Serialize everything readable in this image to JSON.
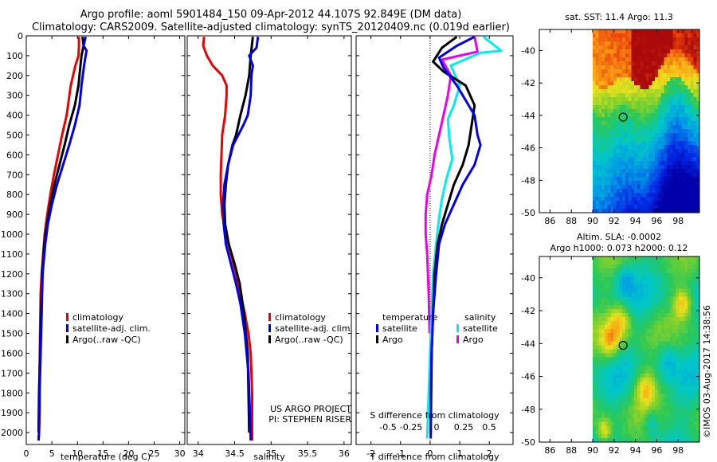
{
  "header": {
    "line1": "Argo profile: aoml 5901484_150 09-Apr-2012 44.107S 92.849E (DM data)",
    "line2": "Climatology: CARS2009. Satellite-adjusted climatology: synTS_20120409.nc (0.019d earlier)"
  },
  "colors": {
    "climatology": "#ee0000",
    "satellite": "#0000ee",
    "argo": "#000000",
    "sat_salinity": "#00eeee",
    "argo_salinity": "#ee00ee"
  },
  "depth_ticks": [
    0,
    100,
    200,
    300,
    400,
    500,
    600,
    700,
    800,
    900,
    1000,
    1100,
    1200,
    1300,
    1400,
    1500,
    1600,
    1700,
    1800,
    1900,
    2000
  ],
  "chart_data": [
    {
      "type": "line",
      "id": "temperature",
      "xlabel": "temperature (deg C)",
      "xlim": [
        0,
        31
      ],
      "ylim": [
        0,
        2060
      ],
      "xticks": [
        0,
        5,
        10,
        15,
        20,
        25,
        30
      ],
      "legend": {
        "location": "lower-middle",
        "entries": [
          "climatology",
          "satellite-adj. clim.",
          "Argo(..raw -QC)"
        ]
      },
      "series": [
        {
          "name": "climatology",
          "color": "#ee0000",
          "x": [
            10.3,
            10.3,
            10.2,
            9.6,
            8.7,
            7.9,
            7.0,
            6.2,
            5.4,
            4.7,
            4.1,
            3.6,
            3.3,
            3.0,
            2.8,
            2.7,
            2.6,
            2.6,
            2.5,
            2.4
          ],
          "y": [
            5,
            50,
            100,
            150,
            250,
            400,
            500,
            600,
            700,
            800,
            900,
            1000,
            1100,
            1200,
            1300,
            1500,
            1700,
            1900,
            2000,
            2040
          ]
        },
        {
          "name": "satellite-adj. clim.",
          "color": "#0000ee",
          "x": [
            11.6,
            11.2,
            11.8,
            11.6,
            11.3,
            10.8,
            10.4,
            9.5,
            8.4,
            7.2,
            6.0,
            5.0,
            4.2,
            3.7,
            3.2,
            3.0,
            2.8,
            2.6,
            2.5,
            2.4
          ],
          "y": [
            5,
            50,
            75,
            100,
            150,
            250,
            350,
            450,
            550,
            650,
            750,
            850,
            950,
            1050,
            1200,
            1400,
            1600,
            1800,
            2000,
            2040
          ]
        },
        {
          "name": "Argo(..raw -QC)",
          "color": "#000000",
          "x": [
            11.0,
            11.2,
            10.8,
            10.6,
            10.2,
            9.5,
            8.4,
            7.5,
            6.5,
            5.5,
            4.7,
            4.0,
            3.5,
            3.1,
            2.9,
            2.7,
            2.5,
            2.4
          ],
          "y": [
            5,
            50,
            100,
            150,
            250,
            350,
            450,
            550,
            650,
            750,
            850,
            950,
            1050,
            1200,
            1400,
            1600,
            1800,
            2000
          ]
        }
      ]
    },
    {
      "type": "line",
      "id": "salinity",
      "xlabel": "salinity",
      "xlim": [
        33.85,
        36.1
      ],
      "ylim": [
        0,
        2060
      ],
      "xticks": [
        34,
        34.5,
        35,
        35.5,
        36
      ],
      "xtick_labels": [
        "34",
        "34.5",
        "35",
        "35.5",
        "36"
      ],
      "legend": {
        "location": "lower-middle",
        "entries": [
          "climatology",
          "satellite-adj. clim.",
          "Argo(..raw -QC)"
        ]
      },
      "annotations": [
        "US ARGO PROJECT",
        "PI: STEPHEN RISER"
      ],
      "series": [
        {
          "name": "climatology",
          "color": "#ee0000",
          "x": [
            34.08,
            34.07,
            34.12,
            34.2,
            34.33,
            34.39,
            34.39,
            34.37,
            34.33,
            34.32,
            34.31,
            34.31,
            34.33,
            34.38,
            34.45,
            34.52,
            34.58,
            34.64,
            34.69,
            34.72,
            34.74,
            34.74
          ],
          "y": [
            5,
            50,
            100,
            150,
            200,
            250,
            300,
            400,
            500,
            600,
            700,
            800,
            900,
            1000,
            1100,
            1200,
            1300,
            1400,
            1500,
            1600,
            1800,
            2040
          ]
        },
        {
          "name": "satellite-adj. clim.",
          "color": "#0000ee",
          "x": [
            34.82,
            34.8,
            34.7,
            34.75,
            34.73,
            34.72,
            34.68,
            34.62,
            34.55,
            34.48,
            34.41,
            34.36,
            34.34,
            34.35,
            34.38,
            34.45,
            34.52,
            34.58,
            34.64,
            34.69,
            34.71,
            34.72
          ],
          "y": [
            5,
            60,
            100,
            150,
            200,
            300,
            400,
            450,
            500,
            550,
            650,
            750,
            850,
            950,
            1050,
            1150,
            1250,
            1350,
            1500,
            1700,
            1900,
            2040
          ]
        },
        {
          "name": "Argo(..raw -QC)",
          "color": "#000000",
          "x": [
            34.75,
            34.72,
            34.7,
            34.65,
            34.58,
            34.52,
            34.47,
            34.41,
            34.38,
            34.36,
            34.37,
            34.42,
            34.5,
            34.57,
            34.63,
            34.68,
            34.7
          ],
          "y": [
            5,
            100,
            200,
            300,
            400,
            500,
            550,
            650,
            750,
            850,
            950,
            1050,
            1150,
            1250,
            1400,
            1600,
            2000
          ]
        }
      ]
    },
    {
      "type": "line",
      "id": "differences",
      "xlabel": "T difference from climatology",
      "xlim": [
        -2.5,
        2.8
      ],
      "ylim": [
        0,
        2060
      ],
      "xticks": [
        -2,
        -1,
        0,
        1,
        2
      ],
      "secondary_xlabel": "S difference from climatology",
      "secondary_xtick_labels": [
        "-0.5",
        "-0.25",
        "0",
        "0.25",
        "0.5"
      ],
      "legend": {
        "location": "lower-middle",
        "headers": [
          "temperature",
          "salinity"
        ],
        "entries": [
          "satellite",
          "Argo",
          "satellite",
          "Argo"
        ]
      },
      "series": [
        {
          "name": "temperature satellite",
          "color": "#0000ee",
          "x": [
            1.5,
            0.9,
            0.3,
            0.45,
            0.9,
            1.5,
            1.6,
            1.7,
            1.5,
            1.1,
            0.8,
            0.5,
            0.3,
            0.2,
            0.1,
            0.05,
            0.02,
            0.02
          ],
          "y": [
            5,
            50,
            110,
            160,
            250,
            400,
            500,
            550,
            650,
            750,
            850,
            950,
            1050,
            1200,
            1400,
            1600,
            1800,
            2030
          ]
        },
        {
          "name": "temperature Argo",
          "color": "#000000",
          "x": [
            0.9,
            0.4,
            0.1,
            0.45,
            1.2,
            1.5,
            1.4,
            1.3,
            1.1,
            0.8,
            0.6,
            0.4,
            0.25,
            0.15,
            0.1,
            0.05,
            0.02
          ],
          "y": [
            5,
            60,
            130,
            180,
            250,
            350,
            450,
            550,
            650,
            750,
            850,
            950,
            1050,
            1200,
            1400,
            1600,
            2000
          ]
        },
        {
          "name": "salinity satellite",
          "color": "#00eeee",
          "x": [
            1.8,
            2.4,
            1.7,
            0.7,
            1.0,
            0.8,
            0.6,
            0.65,
            0.75,
            0.55,
            0.4,
            0.3,
            0.2,
            0.1,
            0.05,
            0.0,
            -0.05,
            -0.1
          ],
          "y": [
            5,
            75,
            85,
            150,
            250,
            350,
            420,
            520,
            620,
            720,
            820,
            920,
            1050,
            1200,
            1400,
            1600,
            1800,
            2030
          ]
        },
        {
          "name": "salinity Argo",
          "color": "#ee00ee",
          "x": [
            1.5,
            1.6,
            0.4,
            0.7,
            0.6,
            0.45,
            0.3,
            0.15,
            0.05,
            -0.1,
            -0.15,
            -0.15,
            -0.1,
            -0.05,
            -0.02
          ],
          "y": [
            5,
            80,
            120,
            200,
            300,
            400,
            500,
            600,
            700,
            800,
            900,
            1000,
            1100,
            1300,
            1500
          ]
        }
      ]
    },
    {
      "type": "heatmap",
      "id": "sst-map",
      "title": "sat. SST: 11.4  Argo: 11.3",
      "xlim": [
        85,
        100
      ],
      "ylim": [
        -50,
        -38.7
      ],
      "xticks": [
        86,
        88,
        90,
        92,
        94,
        96,
        98
      ],
      "yticks": [
        -50,
        -48,
        -46,
        -44,
        -42,
        -40
      ],
      "data_lon_range": [
        90,
        100
      ],
      "marker": {
        "lon": 92.849,
        "lat": -44.107
      }
    },
    {
      "type": "heatmap",
      "id": "sla-map",
      "title": "Altim. SLA: -0.0002",
      "subtitle": "Argo h1000: 0.073 h2000: 0.12",
      "xlim": [
        85,
        100
      ],
      "ylim": [
        -50,
        -38.7
      ],
      "xticks": [
        86,
        88,
        90,
        92,
        94,
        96,
        98
      ],
      "yticks": [
        -50,
        -48,
        -46,
        -44,
        -42,
        -40
      ],
      "data_lon_range": [
        90,
        100
      ],
      "marker": {
        "lon": 92.849,
        "lat": -44.107
      }
    }
  ],
  "watermark": "©IMOS 03-Aug-2017 14:38:56"
}
